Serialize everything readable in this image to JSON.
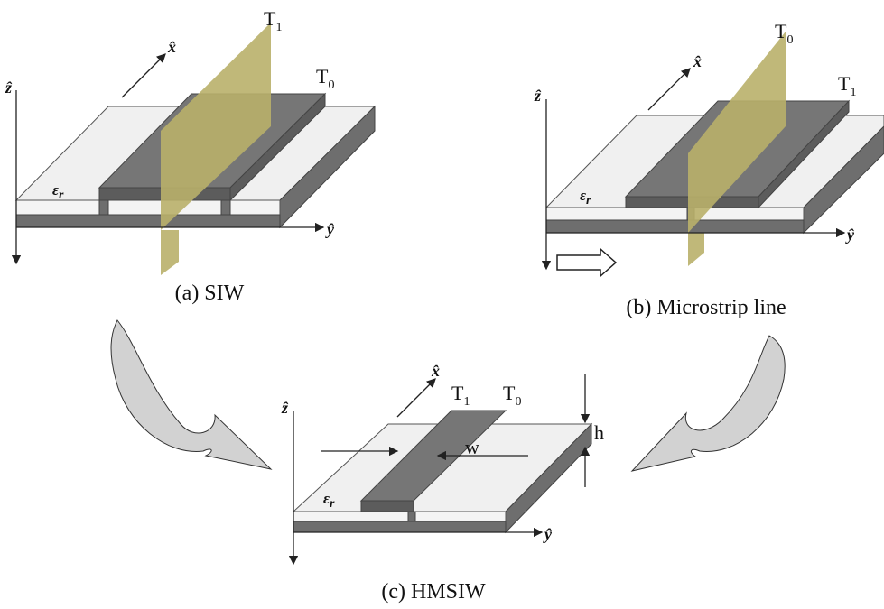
{
  "panels": [
    {
      "caption": "(a) SIW",
      "axes": {
        "x": "x̂",
        "y": "ŷ",
        "z": "ẑ"
      },
      "permittivity": {
        "base": "ε",
        "sub": "r"
      },
      "planes": [
        {
          "base": "T",
          "sub": "1"
        },
        {
          "base": "T",
          "sub": "0"
        }
      ]
    },
    {
      "caption": "(b) Microstrip line",
      "axes": {
        "x": "x̂",
        "y": "ŷ",
        "z": "ẑ"
      },
      "permittivity": {
        "base": "ε",
        "sub": "r"
      },
      "planes": [
        {
          "base": "T",
          "sub": "0"
        },
        {
          "base": "T",
          "sub": "1"
        }
      ]
    },
    {
      "caption": "(c) HMSIW",
      "axes": {
        "x": "x̂",
        "y": "ŷ",
        "z": "ẑ"
      },
      "permittivity": {
        "base": "ε",
        "sub": "r"
      },
      "planes": [
        {
          "base": "T",
          "sub": "1"
        },
        {
          "base": "T",
          "sub": "0"
        }
      ]
    }
  ],
  "dimensions": {
    "width": "w",
    "height": "h"
  }
}
